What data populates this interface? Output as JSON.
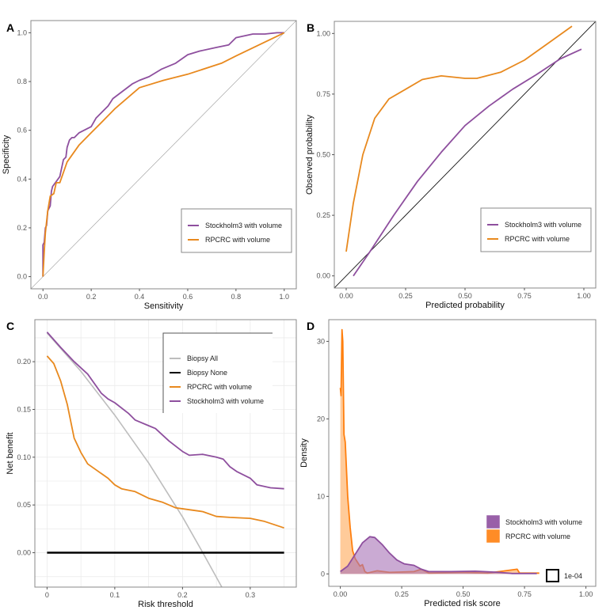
{
  "colors": {
    "stockholm3": "#8e4f9e",
    "rpcrc": "#e8891e",
    "rpcrc_density": "#ff7f0e",
    "biopsy_all": "#bdbdbd",
    "biopsy_none": "#000000"
  },
  "chart_data": [
    {
      "panel": "A",
      "type": "line",
      "xlabel": "Sensitivity",
      "ylabel": "Specificity",
      "xlim": [
        -0.05,
        1.05
      ],
      "ylim": [
        -0.05,
        1.05
      ],
      "xticks": [
        0,
        0.2,
        0.4,
        0.6,
        0.8,
        1.0
      ],
      "xtick_labels": [
        "0.0",
        "0.2",
        "0.4",
        "0.6",
        "0.8",
        "1.0"
      ],
      "yticks": [
        0,
        0.2,
        0.4,
        0.6,
        0.8,
        1.0
      ],
      "ytick_labels": [
        "0.0",
        "0.2",
        "0.4",
        "0.6",
        "0.8",
        "1.0"
      ],
      "grid": false,
      "legend": "bottom-right",
      "reference_line": "diagonal",
      "series": [
        {
          "name": "Stockholm3 with volume",
          "color_key": "stockholm3",
          "x": [
            0,
            0,
            0.005,
            0.01,
            0.015,
            0.02,
            0.03,
            0.035,
            0.04,
            0.055,
            0.07,
            0.085,
            0.095,
            0.1,
            0.11,
            0.12,
            0.13,
            0.15,
            0.2,
            0.22,
            0.24,
            0.27,
            0.29,
            0.33,
            0.37,
            0.4,
            0.44,
            0.49,
            0.55,
            0.6,
            0.65,
            0.72,
            0.77,
            0.8,
            0.87,
            0.92,
            0.97,
            1
          ],
          "y": [
            0,
            0.13,
            0.14,
            0.2,
            0.21,
            0.27,
            0.29,
            0.35,
            0.37,
            0.39,
            0.41,
            0.48,
            0.49,
            0.53,
            0.56,
            0.57,
            0.57,
            0.59,
            0.615,
            0.65,
            0.67,
            0.7,
            0.73,
            0.76,
            0.79,
            0.805,
            0.82,
            0.85,
            0.875,
            0.91,
            0.925,
            0.94,
            0.95,
            0.98,
            0.995,
            0.995,
            1,
            1
          ]
        },
        {
          "name": "RPCRC with volume",
          "color_key": "rpcrc",
          "x": [
            0,
            0.005,
            0.01,
            0.02,
            0.03,
            0.045,
            0.055,
            0.07,
            0.1,
            0.15,
            0.2,
            0.25,
            0.3,
            0.4,
            0.5,
            0.6,
            0.74,
            0.8,
            1
          ],
          "y": [
            0,
            0.1,
            0.18,
            0.27,
            0.33,
            0.34,
            0.385,
            0.385,
            0.47,
            0.54,
            0.59,
            0.64,
            0.69,
            0.775,
            0.805,
            0.83,
            0.875,
            0.905,
            1
          ]
        }
      ]
    },
    {
      "panel": "B",
      "type": "line",
      "xlabel": "Predicted probability",
      "ylabel": "Observed probability",
      "xlim": [
        -0.05,
        1.05
      ],
      "ylim": [
        -0.05,
        1.05
      ],
      "xticks": [
        0,
        0.25,
        0.5,
        0.75,
        1.0
      ],
      "xtick_labels": [
        "0.00",
        "0.25",
        "0.50",
        "0.75",
        "1.00"
      ],
      "yticks": [
        0,
        0.25,
        0.5,
        0.75,
        1.0
      ],
      "ytick_labels": [
        "0.00",
        "0.25",
        "0.50",
        "0.75",
        "1.00"
      ],
      "grid": false,
      "legend": "bottom-right",
      "reference_line": "diagonal",
      "series": [
        {
          "name": "Stockholm3 with volume",
          "color_key": "stockholm3",
          "x": [
            0.03,
            0.1,
            0.2,
            0.3,
            0.4,
            0.5,
            0.6,
            0.7,
            0.8,
            0.9,
            0.99
          ],
          "y": [
            0,
            0.1,
            0.25,
            0.39,
            0.51,
            0.62,
            0.7,
            0.77,
            0.83,
            0.895,
            0.935
          ]
        },
        {
          "name": "RPCRC with volume",
          "color_key": "rpcrc",
          "x": [
            0,
            0.03,
            0.07,
            0.12,
            0.18,
            0.25,
            0.32,
            0.4,
            0.5,
            0.55,
            0.65,
            0.75,
            0.85,
            0.95
          ],
          "y": [
            0.1,
            0.3,
            0.5,
            0.65,
            0.73,
            0.77,
            0.81,
            0.825,
            0.815,
            0.815,
            0.84,
            0.89,
            0.96,
            1.03
          ]
        }
      ]
    },
    {
      "panel": "C",
      "type": "line",
      "xlabel": "Risk threshold",
      "ylabel": "Net benefit",
      "xlim": [
        -0.018,
        0.368
      ],
      "ylim": [
        -0.036,
        0.244
      ],
      "xticks": [
        0,
        0.1,
        0.2,
        0.3
      ],
      "xtick_labels": [
        "0",
        "0.1",
        "0.2",
        "0.3"
      ],
      "yticks": [
        0,
        0.05,
        0.1,
        0.15,
        0.2
      ],
      "ytick_labels": [
        "0.00",
        "0.05",
        "0.10",
        "0.15",
        "0.20"
      ],
      "grid": true,
      "legend": "top-right",
      "series": [
        {
          "name": "Biopsy All",
          "color_key": "biopsy_all",
          "x": [
            0,
            0.05,
            0.1,
            0.15,
            0.2,
            0.23,
            0.258
          ],
          "y": [
            0.23,
            0.19,
            0.144,
            0.094,
            0.0375,
            0,
            -0.036
          ]
        },
        {
          "name": "Biopsy None",
          "color_key": "biopsy_none",
          "x": [
            0,
            0.35
          ],
          "y": [
            0,
            0
          ]
        },
        {
          "name": "RPCRC with volume",
          "color_key": "rpcrc",
          "x": [
            0,
            0.01,
            0.02,
            0.03,
            0.04,
            0.05,
            0.06,
            0.08,
            0.09,
            0.1,
            0.11,
            0.13,
            0.15,
            0.17,
            0.19,
            0.21,
            0.23,
            0.25,
            0.27,
            0.3,
            0.32,
            0.35
          ],
          "y": [
            0.206,
            0.198,
            0.18,
            0.155,
            0.12,
            0.105,
            0.093,
            0.083,
            0.078,
            0.071,
            0.067,
            0.064,
            0.057,
            0.053,
            0.047,
            0.045,
            0.043,
            0.038,
            0.037,
            0.036,
            0.033,
            0.026
          ]
        },
        {
          "name": "Stockholm3 with volume",
          "color_key": "stockholm3",
          "x": [
            0,
            0.02,
            0.04,
            0.06,
            0.08,
            0.09,
            0.1,
            0.12,
            0.13,
            0.15,
            0.16,
            0.18,
            0.2,
            0.21,
            0.23,
            0.25,
            0.26,
            0.27,
            0.28,
            0.3,
            0.31,
            0.33,
            0.35
          ],
          "y": [
            0.231,
            0.215,
            0.2,
            0.187,
            0.167,
            0.161,
            0.157,
            0.146,
            0.139,
            0.133,
            0.13,
            0.117,
            0.106,
            0.102,
            0.103,
            0.1,
            0.098,
            0.09,
            0.085,
            0.078,
            0.071,
            0.068,
            0.067
          ]
        }
      ]
    },
    {
      "panel": "D",
      "type": "area",
      "xlabel": "Predicted risk score",
      "ylabel": "Density",
      "xlim": [
        -0.047,
        1.04
      ],
      "ylim": [
        -1.6,
        32.8
      ],
      "xticks": [
        0,
        0.25,
        0.5,
        0.75,
        1.0
      ],
      "xtick_labels": [
        "0.00",
        "0.25",
        "0.50",
        "0.75",
        "1.00"
      ],
      "yticks": [
        0,
        10,
        20,
        30
      ],
      "ytick_labels": [
        "0",
        "10",
        "20",
        "30"
      ],
      "grid": false,
      "legend": "bottom-right",
      "extra_legend": "1e-04",
      "series": [
        {
          "name": "Stockholm3 with volume",
          "color_key": "stockholm3",
          "x": [
            0,
            0.03,
            0.06,
            0.09,
            0.12,
            0.14,
            0.17,
            0.2,
            0.23,
            0.26,
            0.3,
            0.33,
            0.36,
            0.45,
            0.55,
            0.65,
            0.7,
            0.8
          ],
          "y": [
            0.3,
            1,
            2.5,
            4,
            4.8,
            4.7,
            3.8,
            2.7,
            1.8,
            1.3,
            1.1,
            0.6,
            0.3,
            0.3,
            0.35,
            0.2,
            0.05,
            0.05
          ]
        },
        {
          "name": "RPCRC with volume",
          "color_key": "rpcrc_density",
          "x": [
            0,
            0.003,
            0.007,
            0.01,
            0.015,
            0.02,
            0.03,
            0.04,
            0.05,
            0.06,
            0.07,
            0.08,
            0.09,
            0.1,
            0.11,
            0.15,
            0.2,
            0.3,
            0.33,
            0.36,
            0.5,
            0.6,
            0.72,
            0.73,
            0.81
          ],
          "y": [
            24,
            23,
            31.5,
            30,
            18,
            17,
            10,
            6,
            3,
            2,
            1.5,
            1,
            1.2,
            0.3,
            0.1,
            0.4,
            0.2,
            0.3,
            0.6,
            0.1,
            0.2,
            0.1,
            0.6,
            0.1,
            0.1
          ]
        }
      ]
    }
  ]
}
